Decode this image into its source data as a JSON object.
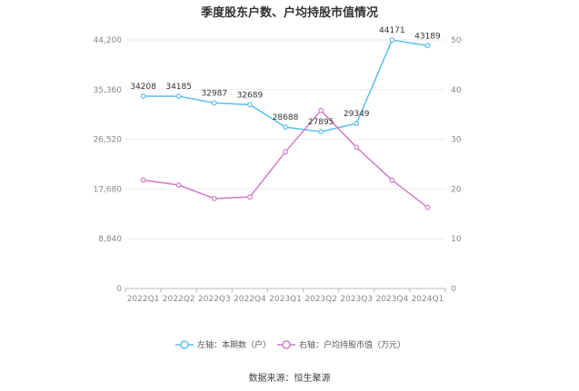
{
  "chart_data": {
    "type": "line",
    "title": "季度股东户数、户均持股市值情况",
    "categories": [
      "2022Q1",
      "2022Q2",
      "2022Q3",
      "2022Q4",
      "2023Q1",
      "2023Q2",
      "2023Q3",
      "2023Q4",
      "2024Q1"
    ],
    "left_axis": {
      "min": 0,
      "max": 44200,
      "ticks": [
        "0",
        "8,840",
        "17,680",
        "26,520",
        "35,360",
        "44,200"
      ]
    },
    "right_axis": {
      "min": 0,
      "max": 50,
      "ticks": [
        "0",
        "10",
        "20",
        "30",
        "40",
        "50"
      ]
    },
    "series": [
      {
        "name": "左轴：本期数（户）",
        "axis": "left",
        "color": "#5bc0eb",
        "values": [
          34208,
          34185,
          32987,
          32689,
          28688,
          27895,
          29349,
          44171,
          43189
        ],
        "labels": [
          "34208",
          "34185",
          "32987",
          "32689",
          "28688",
          "27895",
          "29349",
          "44171",
          "43189"
        ]
      },
      {
        "name": "右轴：户均持股市值（万元）",
        "axis": "right",
        "color": "#d37ac4",
        "values": [
          21.8,
          20.8,
          18.1,
          18.4,
          27.5,
          35.8,
          28.4,
          21.8,
          16.3
        ]
      }
    ],
    "grid": true,
    "legend_position": "bottom"
  },
  "source": "数据来源：恒生聚源"
}
